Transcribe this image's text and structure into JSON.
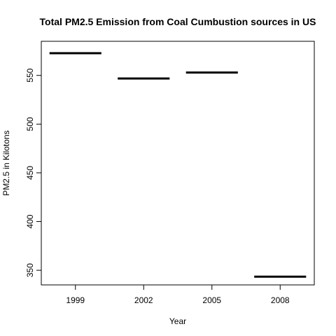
{
  "chart_data": {
    "type": "bar",
    "title": "Total PM2.5 Emission from Coal Cumbustion sources in US",
    "xlabel": "Year",
    "ylabel": "PM2.5 in Kilotons",
    "categories": [
      "1999",
      "2002",
      "2005",
      "2008"
    ],
    "values": [
      572.8,
      546.8,
      552.9,
      343.4
    ],
    "yticks": [
      350,
      400,
      450,
      500,
      550
    ],
    "ylim": [
      335,
      585
    ],
    "grid": false,
    "legend": "none"
  }
}
